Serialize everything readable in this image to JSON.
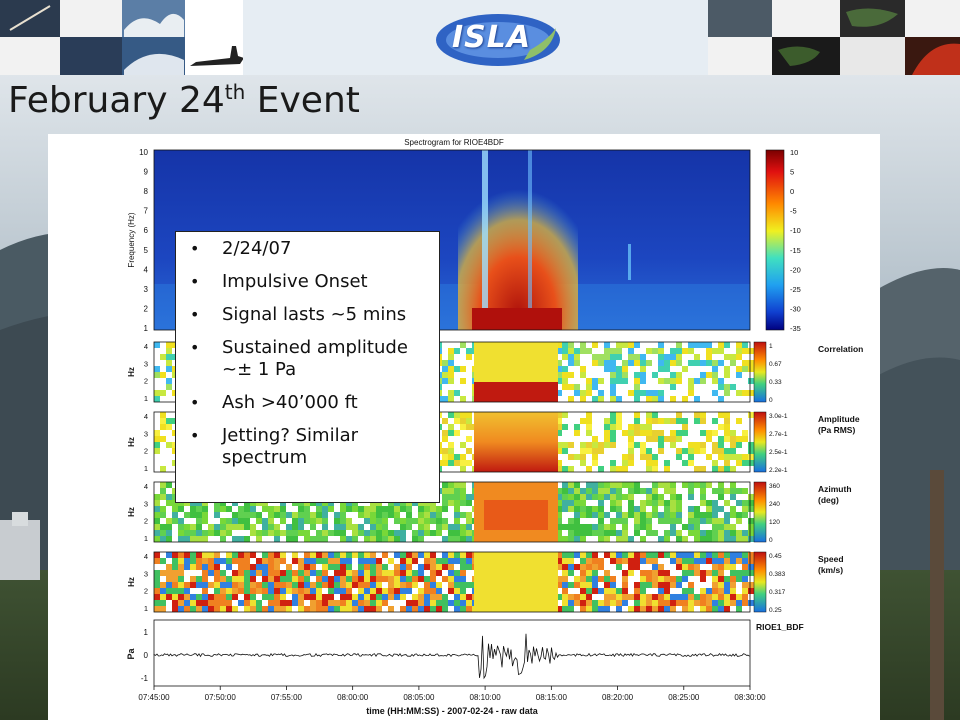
{
  "slide": {
    "title_main": "February 24",
    "title_sup": "th",
    "title_tail": " Event",
    "logo_text": "ISLA"
  },
  "callout": {
    "items": [
      "2/24/07",
      "Impulsive Onset",
      "Signal lasts ~5 mins",
      "Sustained amplitude ~± 1 Pa",
      "Ash >40’000 ft",
      "Jetting? Similar spectrum"
    ]
  },
  "figure": {
    "top_title": "Spectrogram for RIOE4BDF",
    "spectrogram": {
      "ylabel": "Frequency (Hz)",
      "yticks": [
        "10",
        "9",
        "8",
        "7",
        "6",
        "5",
        "4",
        "3",
        "2",
        "1"
      ],
      "colorbar_ticks": [
        "10",
        "5",
        "0",
        "-5",
        "-10",
        "-15",
        "-20",
        "-25",
        "-30",
        "-35"
      ]
    },
    "panels": [
      {
        "ylabel": "Hz",
        "yticks": [
          "4",
          "3",
          "2",
          "1"
        ],
        "title": [
          "Correlation"
        ],
        "cb_ticks": [
          "1",
          "0.67",
          "0.33",
          "0"
        ]
      },
      {
        "ylabel": "Hz",
        "yticks": [
          "4",
          "3",
          "2",
          "1"
        ],
        "title": [
          "Amplitude",
          "(Pa RMS)"
        ],
        "cb_ticks": [
          "3.0e-1",
          "2.7e-1",
          "2.5e-1",
          "2.2e-1"
        ]
      },
      {
        "ylabel": "Hz",
        "yticks": [
          "4",
          "3",
          "2",
          "1"
        ],
        "title": [
          "Azimuth",
          "(deg)"
        ],
        "cb_ticks": [
          "360",
          "240",
          "120",
          "0"
        ]
      },
      {
        "ylabel": "Hz",
        "yticks": [
          "4",
          "3",
          "2",
          "1"
        ],
        "title": [
          "Speed",
          "(km/s)"
        ],
        "cb_ticks": [
          "0.45",
          "0.383",
          "0.317",
          "0.25"
        ]
      }
    ],
    "waveform": {
      "ylabel": "Pa",
      "yticks": [
        "1",
        "0",
        "-1"
      ],
      "station": "RIOE1_BDF"
    },
    "xticks": [
      "07:45:00",
      "07:50:00",
      "07:55:00",
      "08:00:00",
      "08:05:00",
      "08:10:00",
      "08:15:00",
      "08:20:00",
      "08:25:00",
      "08:30:00"
    ],
    "xlabel": "time (HH:MM:SS) - 2007-02-24 - raw data"
  },
  "colors": {
    "title_text": "#1a1a1a",
    "spectro_bg": "#1c3fb0",
    "accent_red": "#c8180e",
    "callout_border": "#222222"
  }
}
